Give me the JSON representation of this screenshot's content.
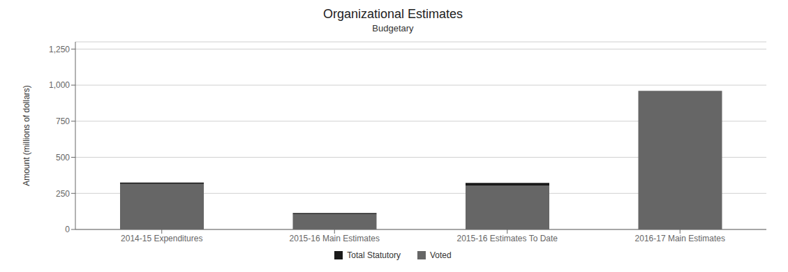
{
  "chart_data": {
    "type": "bar",
    "title": "Organizational Estimates",
    "subtitle": "Budgetary",
    "ylabel": "Amount (millions of dollars)",
    "categories": [
      "2014-15 Expenditures",
      "2015-16 Main Estimates",
      "2015-16 Estimates To Date",
      "2016-17 Main Estimates"
    ],
    "series": [
      {
        "name": "Voted",
        "color": "#666666",
        "values": [
          315,
          105,
          305,
          960
        ]
      },
      {
        "name": "Total Statutory",
        "color": "#1a1a1a",
        "values": [
          10,
          8,
          18,
          0
        ]
      }
    ],
    "stacked": true,
    "ylim": [
      0,
      1300
    ],
    "yticks": [
      0,
      250,
      500,
      {
        "value": 750,
        "label": "750"
      },
      {
        "value": 1000,
        "label": "1,000"
      },
      {
        "value": 1250,
        "label": "1,250"
      }
    ],
    "grid": true,
    "legend": "bottom"
  }
}
